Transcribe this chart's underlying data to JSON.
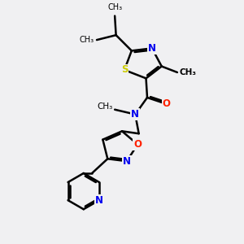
{
  "bg_color": "#f0f0f2",
  "bond_color": "#000000",
  "bond_width": 1.8,
  "figsize": [
    3.0,
    3.0
  ],
  "dpi": 100,
  "xlim": [
    0,
    10
  ],
  "ylim": [
    0,
    10
  ],
  "S_color": "#cccc00",
  "N_color": "#0000ee",
  "O_color": "#ff2200"
}
